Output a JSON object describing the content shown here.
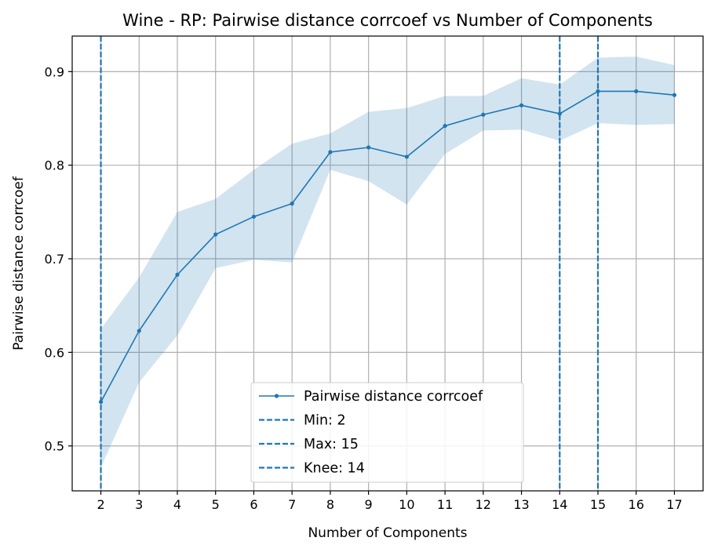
{
  "chart_data": {
    "type": "line",
    "title": "Wine - RP: Pairwise distance corrcoef vs Number of Components",
    "xlabel": "Number of Components",
    "ylabel": "Pairwise distance corrcoef",
    "xlim": [
      1.25,
      17.75
    ],
    "ylim": [
      0.452,
      0.938
    ],
    "x": [
      2,
      3,
      4,
      5,
      6,
      7,
      8,
      9,
      10,
      11,
      12,
      13,
      14,
      15,
      16,
      17
    ],
    "x_tick_labels": [
      "2",
      "3",
      "4",
      "5",
      "6",
      "7",
      "8",
      "9",
      "10",
      "11",
      "12",
      "13",
      "14",
      "15",
      "16",
      "17"
    ],
    "y_ticks": [
      0.5,
      0.6,
      0.7,
      0.8,
      0.9
    ],
    "y_tick_labels": [
      "0.5",
      "0.6",
      "0.7",
      "0.8",
      "0.9"
    ],
    "grid": true,
    "legend_position": "lower center",
    "series": [
      {
        "name": "Pairwise distance corrcoef",
        "color": "#1f77b4",
        "values": [
          0.547,
          0.623,
          0.683,
          0.726,
          0.745,
          0.759,
          0.814,
          0.819,
          0.809,
          0.842,
          0.854,
          0.864,
          0.855,
          0.879,
          0.879,
          0.875
        ],
        "band_upper": [
          0.625,
          0.68,
          0.75,
          0.764,
          0.795,
          0.823,
          0.834,
          0.857,
          0.861,
          0.874,
          0.874,
          0.893,
          0.886,
          0.915,
          0.916,
          0.907
        ],
        "band_lower": [
          0.477,
          0.568,
          0.618,
          0.69,
          0.699,
          0.696,
          0.795,
          0.783,
          0.758,
          0.812,
          0.837,
          0.838,
          0.826,
          0.845,
          0.843,
          0.844
        ],
        "band_color": "#1f77b4"
      }
    ],
    "vlines": [
      {
        "label": "Min: 2",
        "x": 2,
        "color": "#1f77b4",
        "style": "dashed"
      },
      {
        "label": "Max: 15",
        "x": 15,
        "color": "#1f77b4",
        "style": "dashed"
      },
      {
        "label": "Knee: 14",
        "x": 14,
        "color": "#1f77b4",
        "style": "dashed"
      }
    ]
  }
}
